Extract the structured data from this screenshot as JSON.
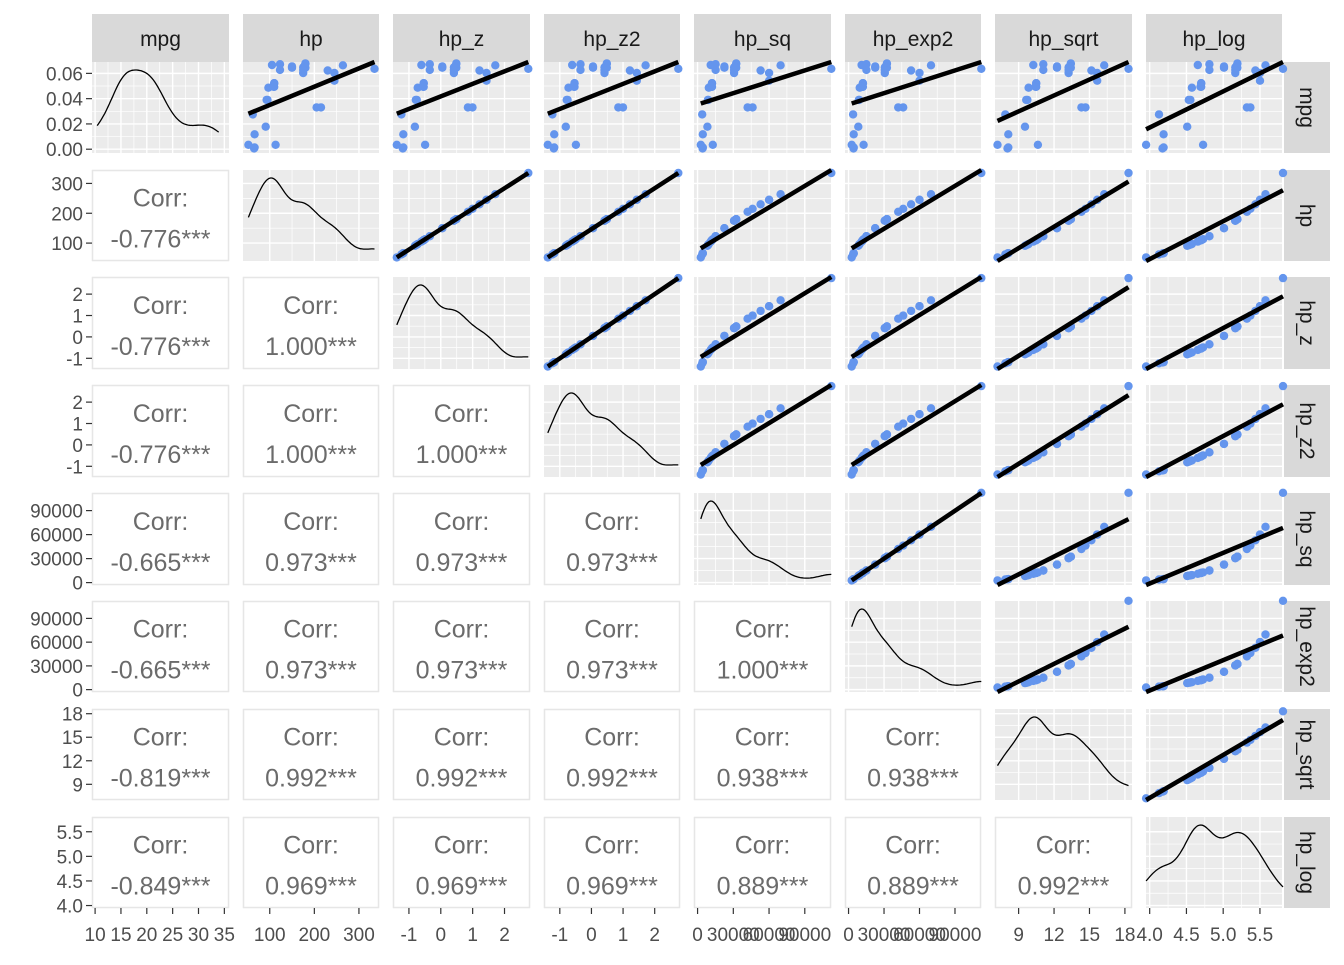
{
  "chart_data": {
    "type": "scatter",
    "variables": [
      "mpg",
      "hp",
      "hp_z",
      "hp_z2",
      "hp_sq",
      "hp_exp2",
      "hp_sqrt",
      "hp_log"
    ],
    "colors": {
      "panel_background": "#EBEBEB",
      "strip_background": "#D9D9D9",
      "grid": "#FFFFFF",
      "points": "#6495ED",
      "fit_line": "#000000",
      "corr_text": "#6B6B6B",
      "axis_text": "#4D4D4D"
    },
    "upper": {
      "content": "scatter points with linear fit line"
    },
    "diagonal": {
      "content": "density curve"
    },
    "lower": {
      "corr_label": "Corr:",
      "values": [
        [
          "",
          "",
          "",
          "",
          "",
          "",
          "",
          ""
        ],
        [
          "-0.776***",
          "",
          "",
          "",
          "",
          "",
          "",
          ""
        ],
        [
          "-0.776***",
          "1.000***",
          "",
          "",
          "",
          "",
          "",
          ""
        ],
        [
          "-0.776***",
          "1.000***",
          "1.000***",
          "",
          "",
          "",
          "",
          ""
        ],
        [
          "-0.665***",
          "0.973***",
          "0.973***",
          "0.973***",
          "",
          "",
          "",
          ""
        ],
        [
          "-0.665***",
          "0.973***",
          "0.973***",
          "0.973***",
          "1.000***",
          "",
          "",
          ""
        ],
        [
          "-0.819***",
          "0.992***",
          "0.992***",
          "0.992***",
          "0.938***",
          "0.938***",
          "",
          ""
        ],
        [
          "-0.849***",
          "0.969***",
          "0.969***",
          "0.969***",
          "0.889***",
          "0.889***",
          "0.992***",
          ""
        ]
      ]
    },
    "y_axes": [
      {
        "ticks": [
          "0.06",
          "0.04",
          "0.02",
          "0.00"
        ],
        "range": [
          -0.003,
          0.069
        ]
      },
      {
        "ticks": [
          "300",
          "200",
          "100"
        ],
        "range": [
          40,
          345
        ]
      },
      {
        "ticks": [
          "2",
          "1",
          "0",
          "-1"
        ],
        "range": [
          -1.5,
          2.8
        ]
      },
      {
        "ticks": [
          "2",
          "1",
          "0",
          "-1"
        ],
        "range": [
          -1.5,
          2.8
        ]
      },
      {
        "ticks": [
          "90000",
          "60000",
          "30000",
          "0"
        ],
        "range": [
          -3000,
          112000
        ]
      },
      {
        "ticks": [
          "90000",
          "60000",
          "30000",
          "0"
        ],
        "range": [
          -3000,
          112000
        ]
      },
      {
        "ticks": [
          "18",
          "15",
          "12",
          "9"
        ],
        "range": [
          7,
          18.6
        ]
      },
      {
        "ticks": [
          "5.5",
          "5.0",
          "4.5",
          "4.0"
        ],
        "range": [
          3.95,
          5.8
        ]
      }
    ],
    "x_axes": [
      {
        "ticks": [
          "10",
          "15",
          "20",
          "25",
          "30",
          "35"
        ],
        "range": [
          9.4,
          35.9
        ]
      },
      {
        "ticks": [
          "100",
          "200",
          "300"
        ],
        "range": [
          40,
          345
        ]
      },
      {
        "ticks": [
          "-1",
          "0",
          "1",
          "2"
        ],
        "range": [
          -1.5,
          2.8
        ]
      },
      {
        "ticks": [
          "-1",
          "0",
          "1",
          "2"
        ],
        "range": [
          -1.5,
          2.8
        ]
      },
      {
        "ticks": [
          "0",
          "30000",
          "60000",
          "90000"
        ],
        "range": [
          -3000,
          112000
        ]
      },
      {
        "ticks": [
          "0",
          "30000",
          "60000",
          "90000"
        ],
        "range": [
          -3000,
          112000
        ]
      },
      {
        "ticks": [
          "9",
          "12",
          "15",
          "18"
        ],
        "range": [
          7,
          18.6
        ]
      },
      {
        "ticks": [
          "4.0",
          "4.5",
          "5.0",
          "5.5"
        ],
        "range": [
          3.95,
          5.8
        ]
      }
    ],
    "mpg_sample": [
      21,
      21,
      22.8,
      21.4,
      18.7,
      18.1,
      14.3,
      24.4,
      22.8,
      19.2,
      17.8,
      16.4,
      17.3,
      15.2,
      10.4,
      10.4,
      14.7,
      32.4,
      30.4,
      33.9,
      21.5,
      15.5,
      15.2,
      13.3,
      19.2,
      27.3,
      26,
      30.4,
      15.8,
      19.7,
      15,
      21.4
    ],
    "hp_sample": [
      110,
      110,
      93,
      110,
      175,
      105,
      245,
      62,
      95,
      123,
      123,
      180,
      180,
      180,
      205,
      215,
      230,
      66,
      52,
      65,
      97,
      150,
      150,
      245,
      175,
      66,
      91,
      113,
      264,
      175,
      335,
      109
    ]
  }
}
